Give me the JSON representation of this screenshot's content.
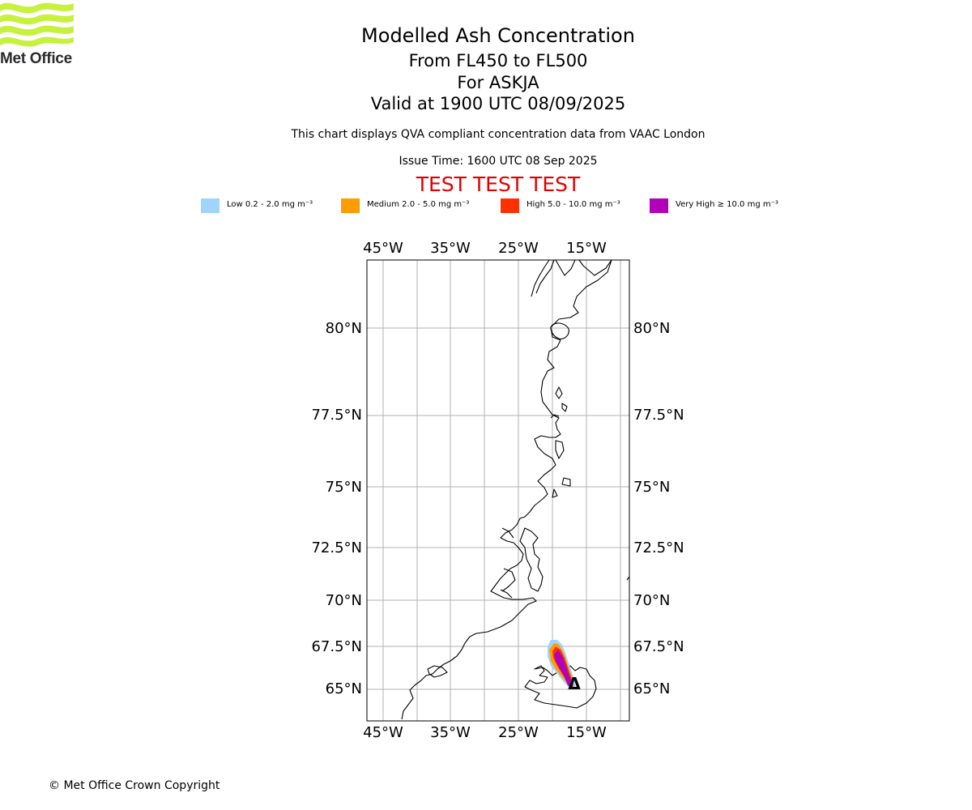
{
  "logo": {
    "name": "Met Office",
    "color": "#c6f13c"
  },
  "titles": {
    "line1": "Modelled Ash Concentration",
    "line2": "From FL450 to FL500",
    "line3": "For ASKJA",
    "line4": "Valid at 1900 UTC 08/09/2025"
  },
  "subtitle": "This chart displays QVA compliant concentration data from VAAC London",
  "issue_time": "Issue Time: 1600 UTC 08 Sep 2025",
  "test_banner": {
    "text": "TEST TEST TEST",
    "color": "#e40000"
  },
  "legend": [
    {
      "label": "Low 0.2 - 2.0 mg m⁻³",
      "color": "#9fd4fb"
    },
    {
      "label": "Medium 2.0 - 5.0 mg m⁻³",
      "color": "#ff9c00"
    },
    {
      "label": "High 5.0 - 10.0 mg m⁻³",
      "color": "#ff3000"
    },
    {
      "label": "Very High ≥ 10.0 mg m⁻³",
      "color": "#b000b8"
    }
  ],
  "map": {
    "longitude_labels": [
      "45°W",
      "35°W",
      "25°W",
      "15°W"
    ],
    "latitude_labels": [
      "80°N",
      "77.5°N",
      "75°N",
      "72.5°N",
      "70°N",
      "67.5°N",
      "65°N"
    ],
    "volcano_marker": "Δ"
  },
  "copyright": "© Met Office Crown Copyright"
}
